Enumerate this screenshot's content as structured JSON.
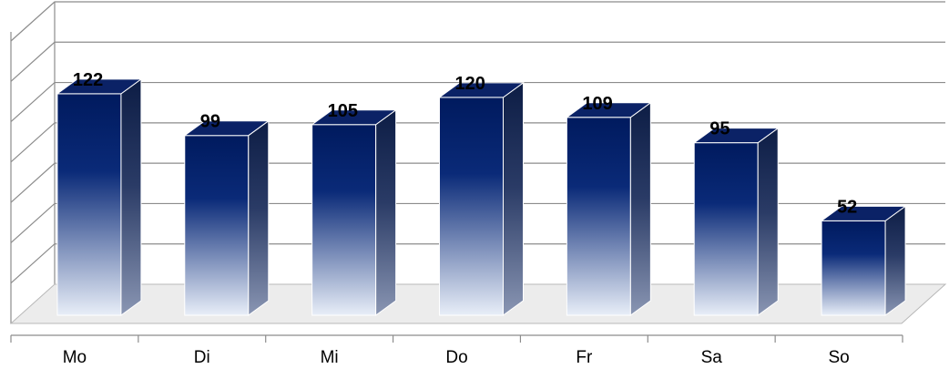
{
  "chart_data": {
    "type": "bar",
    "categories": [
      "Mo",
      "Di",
      "Mi",
      "Do",
      "Fr",
      "Sa",
      "So"
    ],
    "values": [
      122,
      99,
      105,
      120,
      109,
      95,
      52
    ],
    "title": "",
    "xlabel": "",
    "ylabel": "",
    "ylim": [
      0,
      140
    ],
    "grid": true,
    "legend": "none",
    "style": "3d-column",
    "colors": {
      "bar_top": "#001a5e",
      "bar_mid": "#0a2a78",
      "bar_bottom": "#e8eef8",
      "side_dark": "#0d1d45",
      "side_light": "#8a96b3",
      "top_face": "#0b2266",
      "grid": "#8c8c8c"
    }
  }
}
